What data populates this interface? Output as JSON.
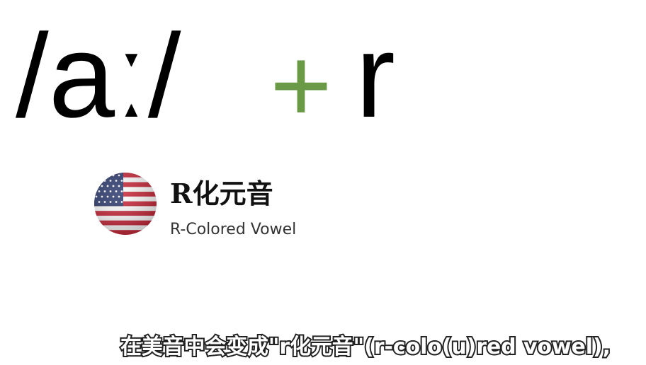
{
  "phonetic": "/aː/",
  "plus": "+",
  "letter": "r",
  "card": {
    "title": "R化元音",
    "subtitle": "R-Colored Vowel"
  },
  "caption": "在美音中会变成\"r化元音\"(r-colo(u)red vowel),"
}
